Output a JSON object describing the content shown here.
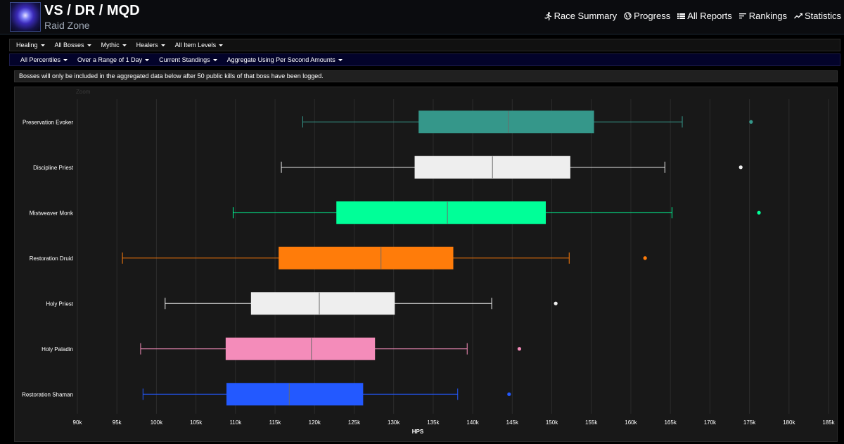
{
  "header": {
    "title": "VS / DR / MQD",
    "subtitle": "Raid Zone",
    "nav": [
      {
        "label": "Race Summary",
        "icon": "runner-icon"
      },
      {
        "label": "Progress",
        "icon": "globe-icon"
      },
      {
        "label": "All Reports",
        "icon": "list-icon"
      },
      {
        "label": "Rankings",
        "icon": "rankings-icon"
      },
      {
        "label": "Statistics",
        "icon": "trend-icon"
      }
    ]
  },
  "filters_primary": [
    "Healing",
    "All Bosses",
    "Mythic",
    "Healers",
    "All Item Levels"
  ],
  "filters_secondary": [
    "All Percentiles",
    "Over a Range of 1 Day",
    "Current Standings",
    "Aggregate Using Per Second Amounts"
  ],
  "notice": "Bosses will only be included in the aggregated data below after 50 public kills of that boss have been logged.",
  "zoom_label": "Zoom",
  "chart_data": {
    "type": "boxplot",
    "orientation": "horizontal",
    "xlabel": "HPS",
    "ylabel": "",
    "xlim": [
      90000,
      185000
    ],
    "grid": true,
    "x_tick_labels": [
      "90k",
      "95k",
      "100k",
      "105k",
      "110k",
      "115k",
      "120k",
      "125k",
      "130k",
      "135k",
      "140k",
      "145k",
      "150k",
      "155k",
      "160k",
      "165k",
      "170k",
      "175k",
      "180k",
      "185k"
    ],
    "series": [
      {
        "category": "Preservation Evoker",
        "color": "#35978a",
        "min": 118500,
        "q1": 133200,
        "median": 144500,
        "q3": 155300,
        "max": 166500,
        "outliers": [
          175200
        ]
      },
      {
        "category": "Discipline Priest",
        "color": "#eeeeee",
        "min": 115800,
        "q1": 132700,
        "median": 142500,
        "q3": 152300,
        "max": 164300,
        "outliers": [
          173900
        ]
      },
      {
        "category": "Mistweaver Monk",
        "color": "#00ff98",
        "min": 109700,
        "q1": 122800,
        "median": 136800,
        "q3": 149200,
        "max": 165200,
        "outliers": [
          176200
        ]
      },
      {
        "category": "Restoration Druid",
        "color": "#ff7c0a",
        "min": 95700,
        "q1": 115500,
        "median": 128400,
        "q3": 137500,
        "max": 152200,
        "outliers": [
          161800
        ]
      },
      {
        "category": "Holy Priest",
        "color": "#eeeeee",
        "min": 101100,
        "q1": 112000,
        "median": 120600,
        "q3": 130100,
        "max": 142400,
        "outliers": [
          150500
        ]
      },
      {
        "category": "Holy Paladin",
        "color": "#f48cba",
        "min": 98000,
        "q1": 108800,
        "median": 119600,
        "q3": 127600,
        "max": 139300,
        "outliers": [
          145900
        ]
      },
      {
        "category": "Restoration Shaman",
        "color": "#2359ff",
        "min": 98300,
        "q1": 108900,
        "median": 116800,
        "q3": 126100,
        "max": 138100,
        "outliers": [
          144600
        ]
      }
    ]
  }
}
